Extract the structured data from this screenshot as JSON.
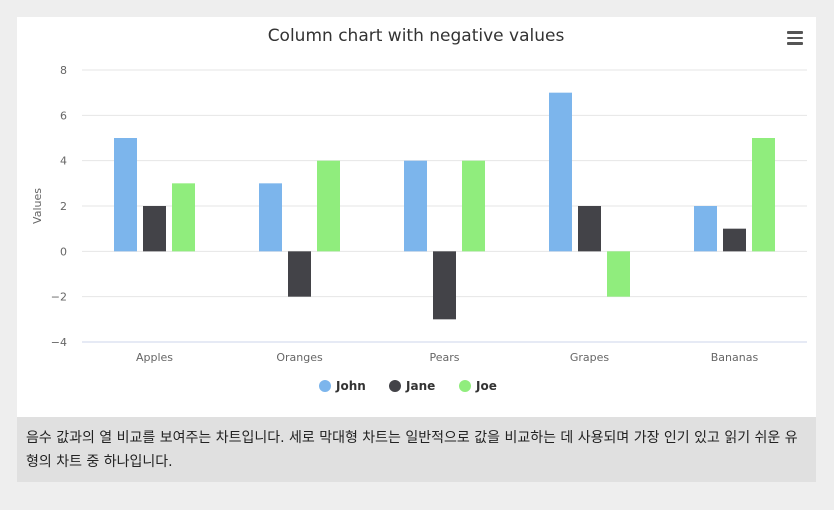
{
  "chart_data": {
    "type": "bar",
    "title": "Column chart with negative values",
    "xlabel": "",
    "ylabel": "Values",
    "categories": [
      "Apples",
      "Oranges",
      "Pears",
      "Grapes",
      "Bananas"
    ],
    "series": [
      {
        "name": "John",
        "color": "#7cb5ec",
        "values": [
          5,
          3,
          4,
          7,
          2
        ]
      },
      {
        "name": "Jane",
        "color": "#434348",
        "values": [
          2,
          -2,
          -3,
          2,
          1
        ]
      },
      {
        "name": "Joe",
        "color": "#90ed7d",
        "values": [
          3,
          4,
          4,
          -2,
          5
        ]
      }
    ],
    "ylim": [
      -4,
      8
    ],
    "yticks": [
      -4,
      -2,
      0,
      2,
      4,
      6,
      8
    ],
    "grid": true,
    "legend": "bottom-center"
  },
  "menu": {
    "icon": "hamburger-menu-icon"
  },
  "caption": "음수 값과의 열 비교를 보여주는 차트입니다. 세로 막대형 차트는 일반적으로 값을 비교하는 데 사용되며 가장 인기 있고 읽기 쉬운 유형의 차트 중 하나입니다."
}
